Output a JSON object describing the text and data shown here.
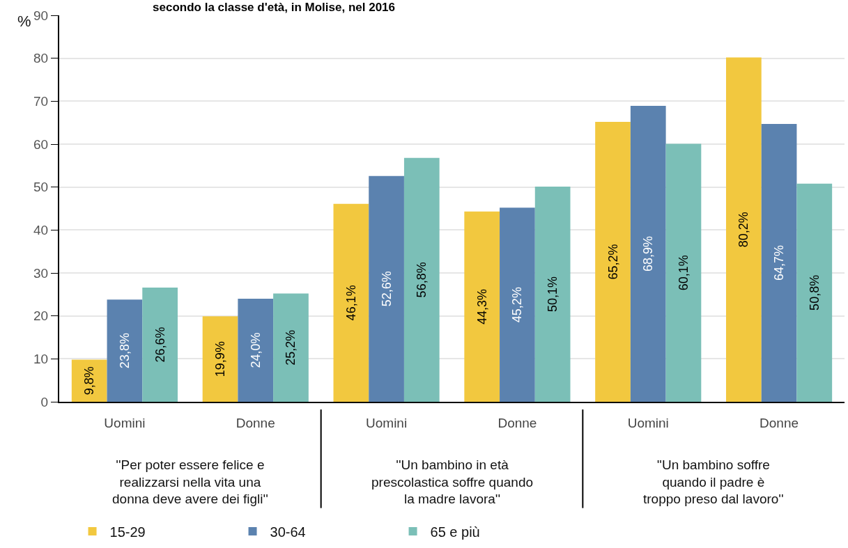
{
  "chart_data": {
    "type": "bar",
    "title": "secondo la classe d'età, in Molise, nel 2016",
    "ylabel": "%",
    "categories": [
      "Uomini",
      "Donne",
      "Uomini",
      "Donne",
      "Uomini",
      "Donne"
    ],
    "annotations": [
      "''Per poter essere felice e\nrealizzarsi nella vita una\ndonna deve avere dei figli''",
      "''Un bambino in età\nprescolastica soffre quando\nla madre lavora''",
      "''Un bambino soffre\nquando il padre è\ntroppo preso dal lavoro''"
    ],
    "series": [
      {
        "name": "15-29",
        "color": "#f2c83f",
        "values": [
          9.8,
          19.9,
          46.1,
          44.3,
          65.2,
          80.2
        ],
        "value_labels": [
          "9,8%",
          "19,9%",
          "46,1%",
          "44,3%",
          "65,2%",
          "80,2%"
        ]
      },
      {
        "name": "30-64",
        "color": "#5b82af",
        "values": [
          23.8,
          24.0,
          52.6,
          45.2,
          68.9,
          64.7
        ],
        "value_labels": [
          "23,8%",
          "24,0%",
          "52,6%",
          "45,2%",
          "68,9%",
          "64,7%"
        ]
      },
      {
        "name": "65 e più",
        "color": "#7bbfb7",
        "values": [
          26.6,
          25.2,
          56.8,
          50.1,
          60.1,
          50.8
        ],
        "value_labels": [
          "26,6%",
          "25,2%",
          "56,8%",
          "50,1%",
          "60,1%",
          "50,8%"
        ]
      }
    ],
    "ylim": [
      0,
      90
    ],
    "yticks": [
      0,
      10,
      20,
      30,
      40,
      50,
      60,
      70,
      80,
      90
    ],
    "grid": "y",
    "legend": "bottom left"
  }
}
